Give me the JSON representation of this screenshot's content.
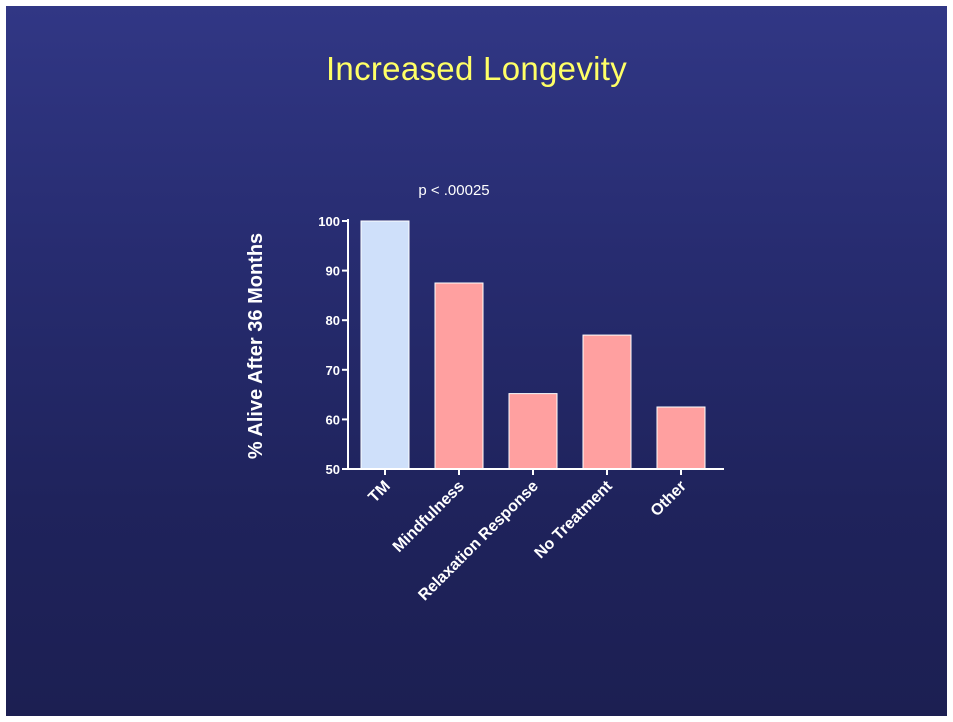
{
  "slide": {
    "title": "Increased Longevity"
  },
  "chart_data": {
    "type": "bar",
    "categories": [
      "TM",
      "Mindfulness",
      "Relaxation Response",
      "No Treatment",
      "Other"
    ],
    "values": [
      100,
      87.5,
      65.2,
      77,
      62.5
    ],
    "colors": [
      "#cfe0fa",
      "#ffa0a0",
      "#ffa0a0",
      "#ffa0a0",
      "#ffa0a0"
    ],
    "ylabel": "% Alive After 36 Months",
    "ylim": [
      50,
      100
    ],
    "yticks": [
      50,
      60,
      70,
      80,
      90,
      100
    ],
    "annotation": "p < .00025",
    "grid": false
  }
}
